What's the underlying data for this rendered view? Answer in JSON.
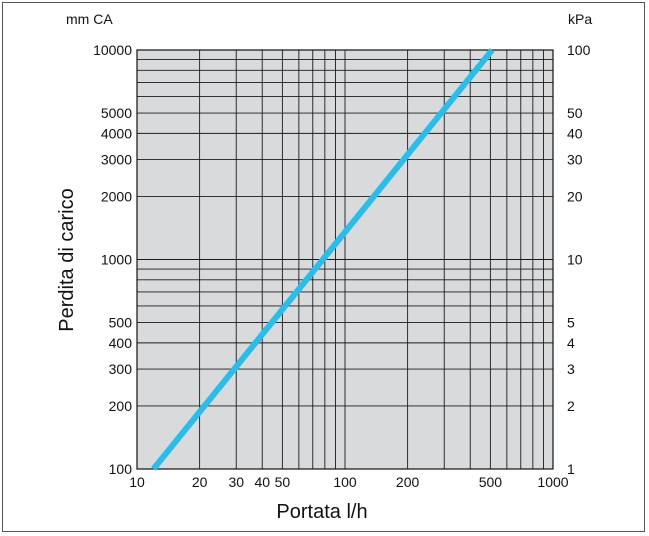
{
  "chart_data": {
    "type": "line",
    "xscale": "log",
    "yscale": "log",
    "xlim": [
      10,
      1000
    ],
    "ylim": [
      100,
      10000
    ],
    "xlabel": "Portata l/h",
    "ylabel": "Perdita di carico",
    "y_unit_left": "mm CA",
    "y_unit_right": "kPa",
    "x_ticks": [
      "10",
      "20",
      "30",
      "40",
      "50",
      "100",
      "200",
      "500",
      "1000"
    ],
    "y_ticks_left": [
      "100",
      "200",
      "300",
      "400",
      "500",
      "1000",
      "2000",
      "3000",
      "4000",
      "5000",
      "10000"
    ],
    "y_ticks_right": [
      "1",
      "2",
      "3",
      "4",
      "5",
      "10",
      "20",
      "30",
      "40",
      "50",
      "100"
    ],
    "grid": true,
    "background_color": "#d9dadc",
    "line_color": "#29bdea",
    "series": [
      {
        "x": [
          12,
          510
        ],
        "y": [
          100,
          10000
        ]
      }
    ]
  }
}
